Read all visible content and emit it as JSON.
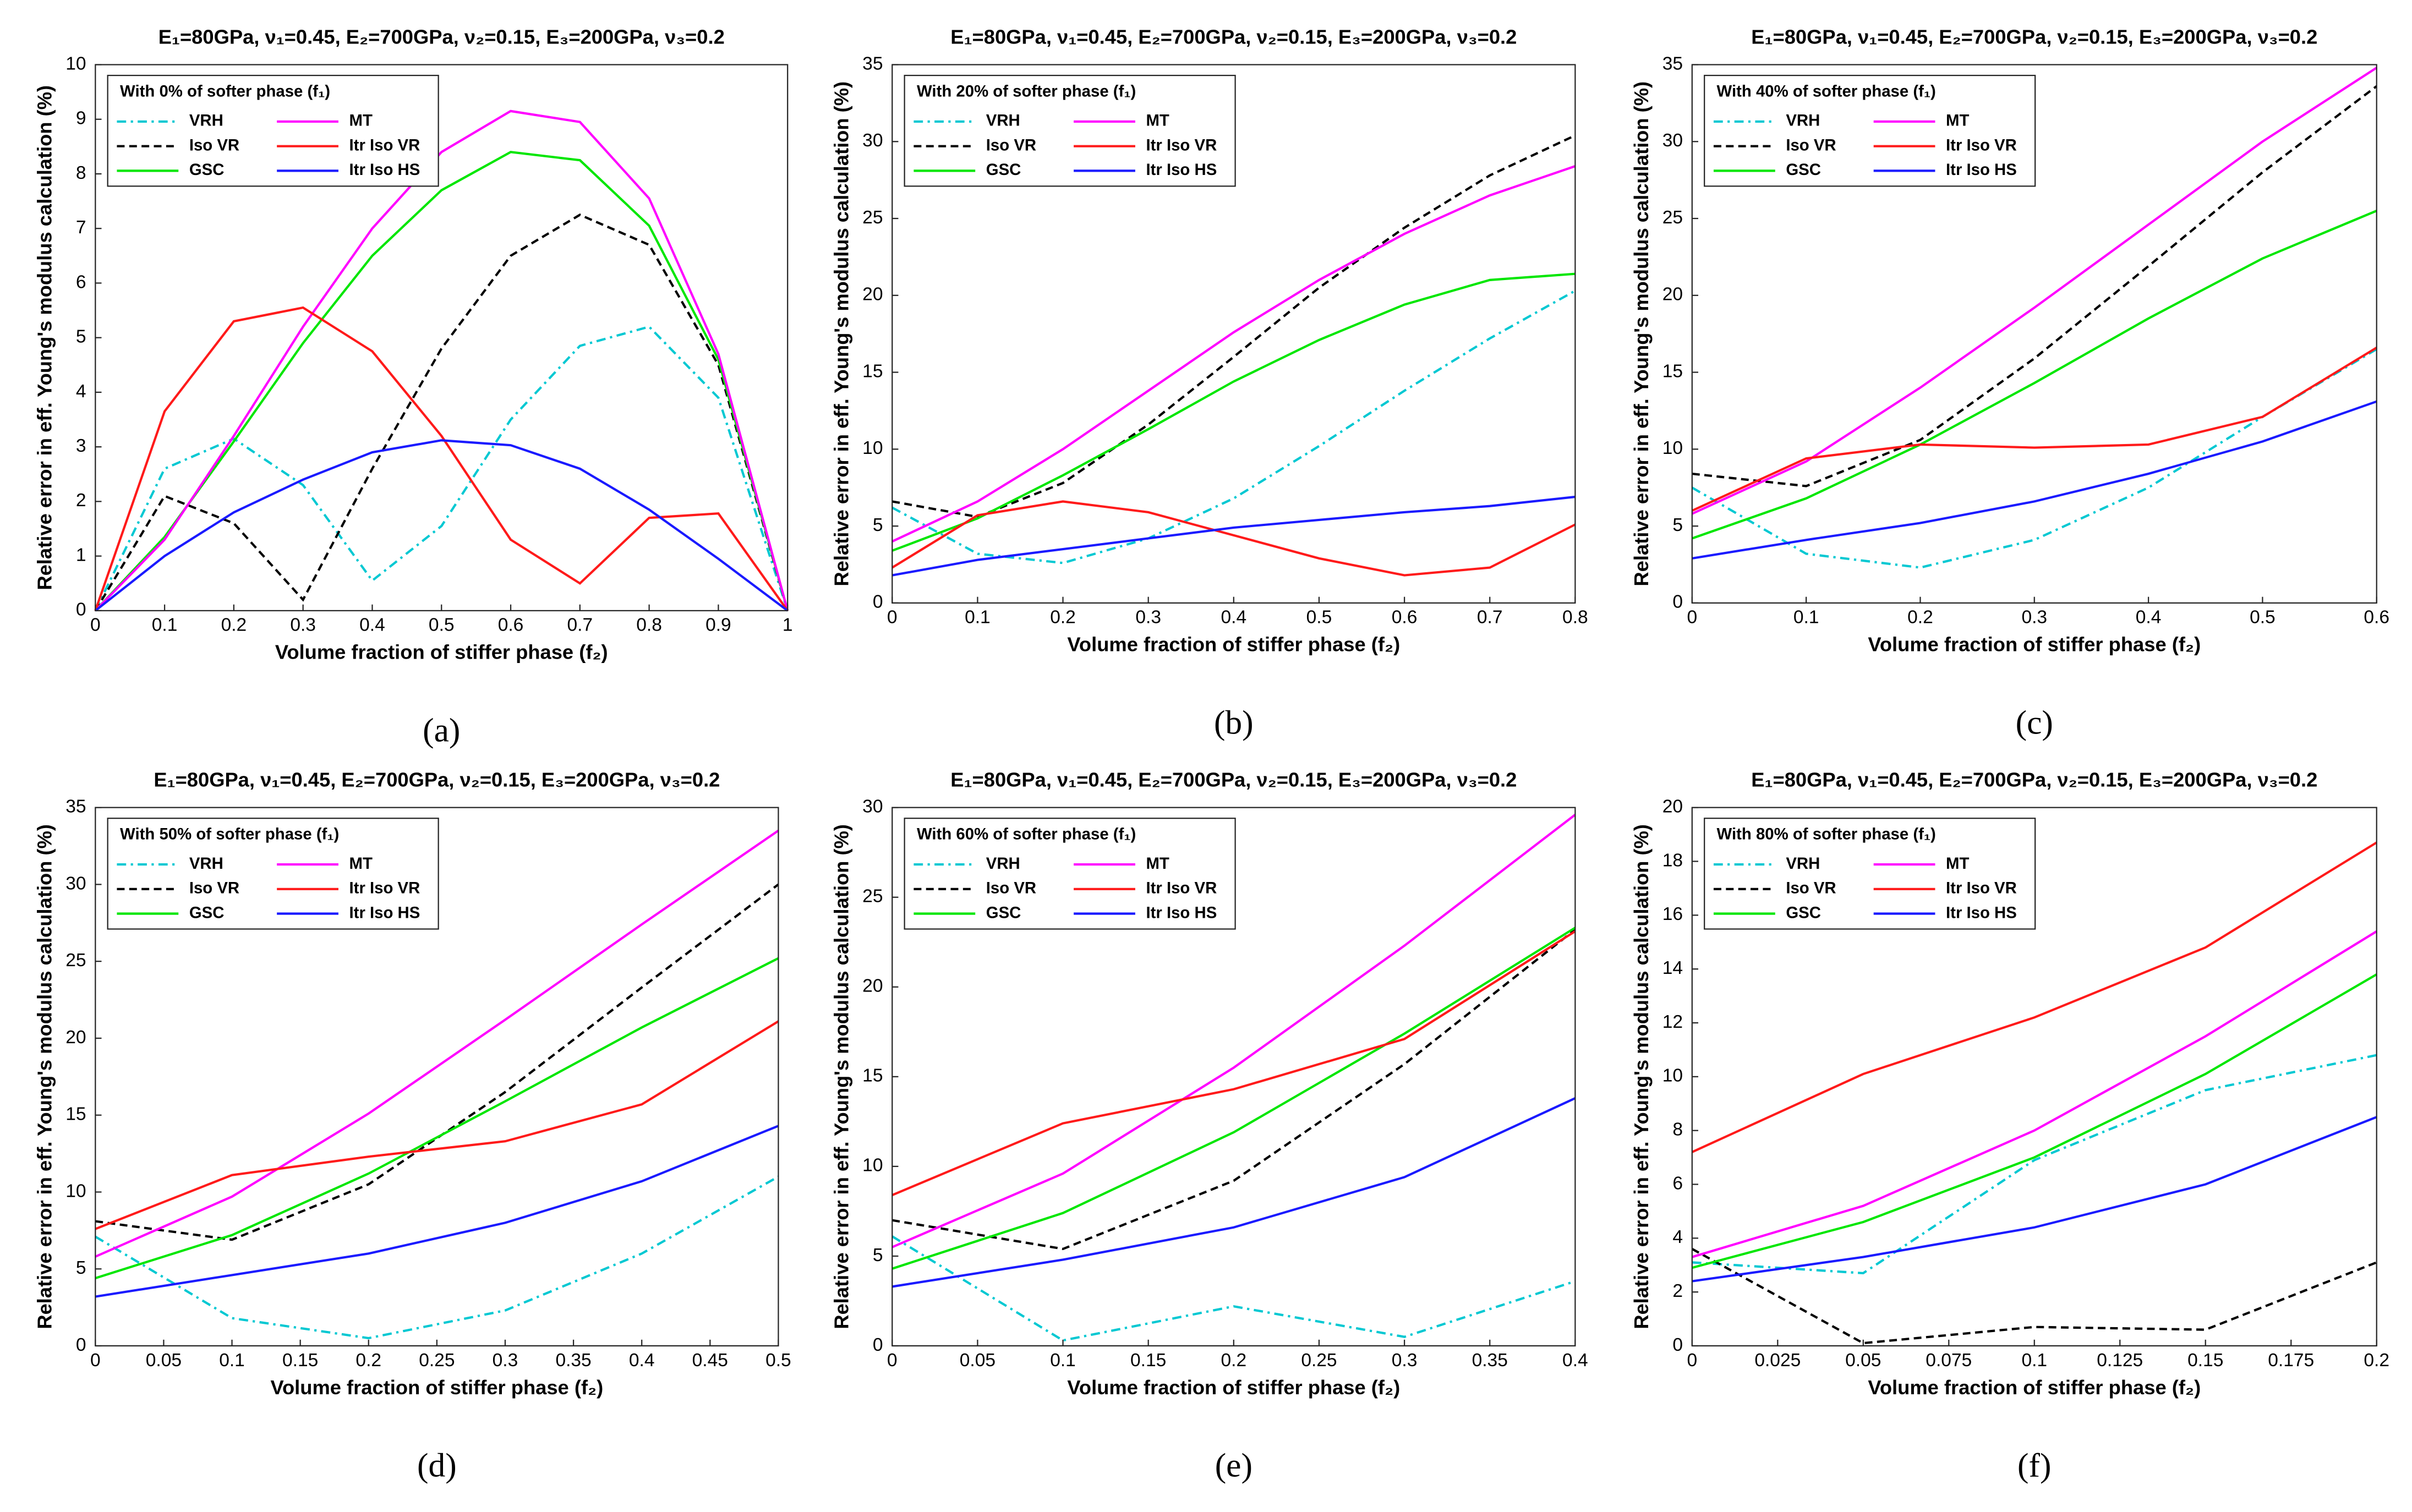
{
  "chart_data": [
    {
      "type": "line",
      "title": "E₁=80GPa, ν₁=0.45, E₂=700GPa, ν₂=0.15, E₃=200GPa, ν₃=0.2",
      "panel_label": "(a)",
      "legend_title": "With 0% of softer phase (f₁)",
      "x_label": "Volume fraction of stiffer phase (f₂)",
      "y_label": "Relative error in eff. Young's modulus calculation (%)",
      "x": [
        0,
        0.1,
        0.2,
        0.3,
        0.4,
        0.5,
        0.6,
        0.7,
        0.8,
        0.9,
        1
      ],
      "xlim": [
        0,
        1
      ],
      "xticks": [
        0,
        0.1,
        0.2,
        0.3,
        0.4,
        0.5,
        0.6,
        0.7,
        0.8,
        0.9,
        1
      ],
      "ylim": [
        0,
        10
      ],
      "yticks": [
        0,
        1,
        2,
        3,
        4,
        5,
        6,
        7,
        8,
        9,
        10
      ],
      "grid": false,
      "legend": "upper left",
      "series": [
        {
          "name": "VRH",
          "color": "#00c8d2",
          "dash": "dashdot",
          "values": [
            0,
            2.6,
            3.15,
            2.3,
            0.55,
            1.55,
            3.5,
            4.85,
            5.2,
            3.9,
            0
          ]
        },
        {
          "name": "Iso VR",
          "color": "#000000",
          "dash": "dashed",
          "values": [
            0,
            2.1,
            1.6,
            0.2,
            2.6,
            4.8,
            6.5,
            7.25,
            6.7,
            4.5,
            0
          ]
        },
        {
          "name": "GSC",
          "color": "#00e600",
          "dash": "solid",
          "values": [
            0,
            1.35,
            3.1,
            4.9,
            6.5,
            7.7,
            8.4,
            8.25,
            7.05,
            4.6,
            0
          ]
        },
        {
          "name": "MT",
          "color": "#ff00ff",
          "dash": "solid",
          "values": [
            0,
            1.3,
            3.2,
            5.2,
            7.0,
            8.4,
            9.15,
            8.95,
            7.55,
            4.7,
            0
          ]
        },
        {
          "name": "Itr Iso VR",
          "color": "#ff1a1a",
          "dash": "solid",
          "values": [
            0,
            3.65,
            5.3,
            5.55,
            4.75,
            3.2,
            1.3,
            0.5,
            1.7,
            1.78,
            0
          ]
        },
        {
          "name": "Itr Iso HS",
          "color": "#1a1aff",
          "dash": "solid",
          "values": [
            0,
            1.0,
            1.8,
            2.4,
            2.9,
            3.12,
            3.03,
            2.6,
            1.85,
            0.95,
            0
          ]
        }
      ]
    },
    {
      "type": "line",
      "title": "E₁=80GPa, ν₁=0.45, E₂=700GPa, ν₂=0.15, E₃=200GPa, ν₃=0.2",
      "panel_label": "(b)",
      "legend_title": "With 20% of softer phase (f₁)",
      "x_label": "Volume fraction of stiffer phase (f₂)",
      "y_label": "Relative error in eff. Young's modulus calculation (%)",
      "x": [
        0,
        0.1,
        0.2,
        0.3,
        0.4,
        0.5,
        0.6,
        0.7,
        0.8
      ],
      "xlim": [
        0,
        0.8
      ],
      "xticks": [
        0,
        0.1,
        0.2,
        0.3,
        0.4,
        0.5,
        0.6,
        0.7,
        0.8
      ],
      "ylim": [
        0,
        35
      ],
      "yticks": [
        0,
        5,
        10,
        15,
        20,
        25,
        30,
        35
      ],
      "grid": false,
      "legend": "upper left",
      "series": [
        {
          "name": "VRH",
          "color": "#00c8d2",
          "dash": "dashdot",
          "values": [
            6.2,
            3.2,
            2.6,
            4.2,
            6.8,
            10.2,
            13.8,
            17.2,
            20.3
          ]
        },
        {
          "name": "Iso VR",
          "color": "#000000",
          "dash": "dashed",
          "values": [
            6.6,
            5.6,
            7.8,
            11.6,
            16.0,
            20.5,
            24.4,
            27.8,
            30.4
          ]
        },
        {
          "name": "GSC",
          "color": "#00e600",
          "dash": "solid",
          "values": [
            3.4,
            5.5,
            8.3,
            11.3,
            14.4,
            17.1,
            19.4,
            21.0,
            21.4
          ]
        },
        {
          "name": "MT",
          "color": "#ff00ff",
          "dash": "solid",
          "values": [
            4.0,
            6.6,
            10.0,
            13.8,
            17.6,
            21.0,
            24.0,
            26.5,
            28.4
          ]
        },
        {
          "name": "Itr Iso VR",
          "color": "#ff1a1a",
          "dash": "solid",
          "values": [
            2.3,
            5.7,
            6.6,
            5.9,
            4.4,
            2.9,
            1.8,
            2.3,
            5.1
          ]
        },
        {
          "name": "Itr Iso HS",
          "color": "#1a1aff",
          "dash": "solid",
          "values": [
            1.8,
            2.8,
            3.5,
            4.2,
            4.9,
            5.4,
            5.9,
            6.3,
            6.9
          ]
        }
      ]
    },
    {
      "type": "line",
      "title": "E₁=80GPa, ν₁=0.45, E₂=700GPa, ν₂=0.15, E₃=200GPa, ν₃=0.2",
      "panel_label": "(c)",
      "legend_title": "With 40% of softer phase (f₁)",
      "x_label": "Volume fraction of stiffer phase (f₂)",
      "y_label": "Relative error in eff. Young's modulus calculation (%)",
      "x": [
        0,
        0.1,
        0.2,
        0.3,
        0.4,
        0.5,
        0.6
      ],
      "xlim": [
        0,
        0.6
      ],
      "xticks": [
        0,
        0.1,
        0.2,
        0.3,
        0.4,
        0.5,
        0.6
      ],
      "ylim": [
        0,
        35
      ],
      "yticks": [
        0,
        5,
        10,
        15,
        20,
        25,
        30,
        35
      ],
      "grid": false,
      "legend": "upper left",
      "series": [
        {
          "name": "VRH",
          "color": "#00c8d2",
          "dash": "dashdot",
          "values": [
            7.5,
            3.2,
            2.3,
            4.1,
            7.5,
            12.1,
            16.5
          ]
        },
        {
          "name": "Iso VR",
          "color": "#000000",
          "dash": "dashed",
          "values": [
            8.4,
            7.6,
            10.6,
            15.9,
            21.9,
            28.0,
            33.6
          ]
        },
        {
          "name": "GSC",
          "color": "#00e600",
          "dash": "solid",
          "values": [
            4.2,
            6.8,
            10.3,
            14.3,
            18.5,
            22.4,
            25.5
          ]
        },
        {
          "name": "MT",
          "color": "#ff00ff",
          "dash": "solid",
          "values": [
            5.8,
            9.2,
            14.0,
            19.2,
            24.6,
            30.0,
            34.8
          ]
        },
        {
          "name": "Itr Iso VR",
          "color": "#ff1a1a",
          "dash": "solid",
          "values": [
            6.0,
            9.4,
            10.3,
            10.1,
            10.3,
            12.1,
            16.6
          ]
        },
        {
          "name": "Itr Iso HS",
          "color": "#1a1aff",
          "dash": "solid",
          "values": [
            2.9,
            4.1,
            5.2,
            6.6,
            8.4,
            10.5,
            13.1
          ]
        }
      ]
    },
    {
      "type": "line",
      "title": "E₁=80GPa, ν₁=0.45, E₂=700GPa, ν₂=0.15, E₃=200GPa, ν₃=0.2",
      "panel_label": "(d)",
      "legend_title": "With 50% of softer phase (f₁)",
      "x_label": "Volume fraction of stiffer phase (f₂)",
      "y_label": "Relative error in eff. Young's modulus calculation (%)",
      "x": [
        0,
        0.1,
        0.2,
        0.3,
        0.4,
        0.5
      ],
      "xlim": [
        0,
        0.5
      ],
      "xticks": [
        0,
        0.05,
        0.1,
        0.15,
        0.2,
        0.25,
        0.3,
        0.35,
        0.4,
        0.45,
        0.5
      ],
      "ylim": [
        0,
        35
      ],
      "yticks": [
        0,
        5,
        10,
        15,
        20,
        25,
        30,
        35
      ],
      "grid": false,
      "legend": "upper left",
      "series": [
        {
          "name": "VRH",
          "color": "#00c8d2",
          "dash": "dashdot",
          "values": [
            7.1,
            1.8,
            0.5,
            2.3,
            6.0,
            11.0
          ]
        },
        {
          "name": "Iso VR",
          "color": "#000000",
          "dash": "dashed",
          "values": [
            8.1,
            6.9,
            10.5,
            16.5,
            23.3,
            30.0
          ]
        },
        {
          "name": "GSC",
          "color": "#00e600",
          "dash": "solid",
          "values": [
            4.4,
            7.2,
            11.2,
            15.9,
            20.7,
            25.2
          ]
        },
        {
          "name": "MT",
          "color": "#ff00ff",
          "dash": "solid",
          "values": [
            5.8,
            9.7,
            15.1,
            21.2,
            27.4,
            33.5
          ]
        },
        {
          "name": "Itr Iso VR",
          "color": "#ff1a1a",
          "dash": "solid",
          "values": [
            7.6,
            11.1,
            12.3,
            13.3,
            15.7,
            21.1
          ]
        },
        {
          "name": "Itr Iso HS",
          "color": "#1a1aff",
          "dash": "solid",
          "values": [
            3.2,
            4.6,
            6.0,
            8.0,
            10.7,
            14.3
          ]
        }
      ]
    },
    {
      "type": "line",
      "title": "E₁=80GPa, ν₁=0.45, E₂=700GPa, ν₂=0.15, E₃=200GPa, ν₃=0.2",
      "panel_label": "(e)",
      "legend_title": "With 60% of softer phase (f₁)",
      "x_label": "Volume fraction of stiffer phase (f₂)",
      "y_label": "Relative error in eff. Young's modulus calculation (%)",
      "x": [
        0,
        0.1,
        0.2,
        0.3,
        0.4
      ],
      "xlim": [
        0,
        0.4
      ],
      "xticks": [
        0,
        0.05,
        0.1,
        0.15,
        0.2,
        0.25,
        0.3,
        0.35,
        0.4
      ],
      "ylim": [
        0,
        30
      ],
      "yticks": [
        0,
        5,
        10,
        15,
        20,
        25,
        30
      ],
      "grid": false,
      "legend": "upper left",
      "series": [
        {
          "name": "VRH",
          "color": "#00c8d2",
          "dash": "dashdot",
          "values": [
            6.1,
            0.3,
            2.2,
            0.5,
            3.6
          ]
        },
        {
          "name": "Iso VR",
          "color": "#000000",
          "dash": "dashed",
          "values": [
            7.0,
            5.4,
            9.2,
            15.7,
            23.2
          ]
        },
        {
          "name": "GSC",
          "color": "#00e600",
          "dash": "solid",
          "values": [
            4.3,
            7.4,
            11.9,
            17.4,
            23.3
          ]
        },
        {
          "name": "MT",
          "color": "#ff00ff",
          "dash": "solid",
          "values": [
            5.5,
            9.6,
            15.5,
            22.3,
            29.6
          ]
        },
        {
          "name": "Itr Iso VR",
          "color": "#ff1a1a",
          "dash": "solid",
          "values": [
            8.4,
            12.4,
            14.3,
            17.1,
            23.1
          ]
        },
        {
          "name": "Itr Iso HS",
          "color": "#1a1aff",
          "dash": "solid",
          "values": [
            3.3,
            4.8,
            6.6,
            9.4,
            13.8
          ]
        }
      ]
    },
    {
      "type": "line",
      "title": "E₁=80GPa, ν₁=0.45, E₂=700GPa, ν₂=0.15, E₃=200GPa, ν₃=0.2",
      "panel_label": "(f)",
      "legend_title": "With 80% of softer phase (f₁)",
      "x_label": "Volume fraction of stiffer phase (f₂)",
      "y_label": "Relative error in eff. Young's modulus calculation (%)",
      "x": [
        0,
        0.05,
        0.1,
        0.15,
        0.2
      ],
      "xlim": [
        0,
        0.2
      ],
      "xticks": [
        0,
        0.025,
        0.05,
        0.075,
        0.1,
        0.125,
        0.15,
        0.175,
        0.2
      ],
      "ylim": [
        0,
        20
      ],
      "yticks": [
        0,
        2,
        4,
        6,
        8,
        10,
        12,
        14,
        16,
        18,
        20
      ],
      "grid": false,
      "legend": "upper left",
      "series": [
        {
          "name": "VRH",
          "color": "#00c8d2",
          "dash": "dashdot",
          "values": [
            3.1,
            2.7,
            6.9,
            9.5,
            10.8
          ]
        },
        {
          "name": "Iso VR",
          "color": "#000000",
          "dash": "dashed",
          "values": [
            3.6,
            0.1,
            0.7,
            0.6,
            3.1
          ]
        },
        {
          "name": "GSC",
          "color": "#00e600",
          "dash": "solid",
          "values": [
            2.9,
            4.6,
            7.0,
            10.1,
            13.8
          ]
        },
        {
          "name": "MT",
          "color": "#ff00ff",
          "dash": "solid",
          "values": [
            3.3,
            5.2,
            8.0,
            11.5,
            15.4
          ]
        },
        {
          "name": "Itr Iso VR",
          "color": "#ff1a1a",
          "dash": "solid",
          "values": [
            7.2,
            10.1,
            12.2,
            14.8,
            18.7
          ]
        },
        {
          "name": "Itr Iso HS",
          "color": "#1a1aff",
          "dash": "solid",
          "values": [
            2.4,
            3.3,
            4.4,
            6.0,
            8.5
          ]
        }
      ]
    }
  ]
}
